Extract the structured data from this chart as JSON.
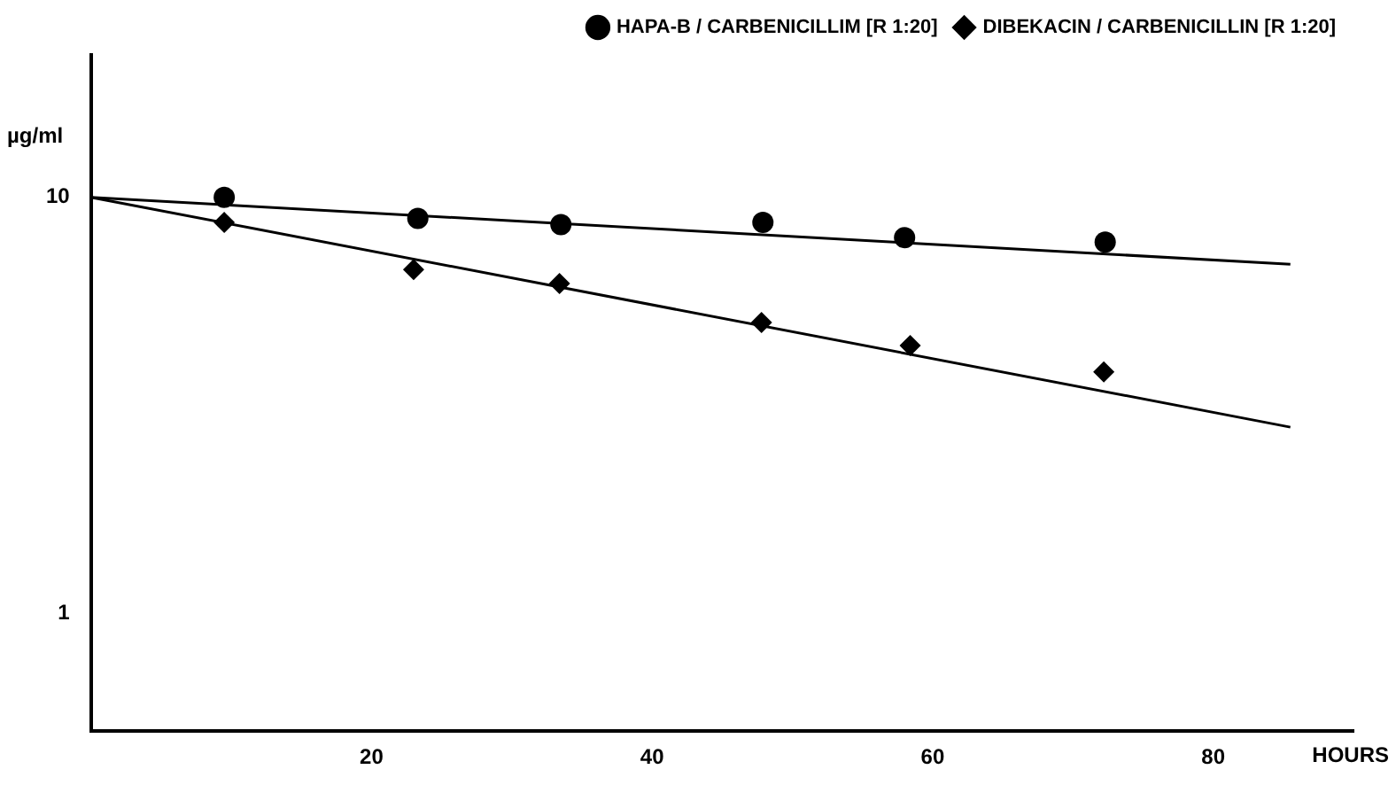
{
  "chart_data": {
    "type": "scatter",
    "xlabel": "HOURS",
    "ylabel": "µg/ml",
    "log": "y",
    "xlim": [
      0,
      90
    ],
    "xticks": [
      20,
      40,
      60,
      80
    ],
    "ylim": [
      0.52,
      22
    ],
    "yticks": [
      1,
      10
    ],
    "grid": false,
    "legend": "top right",
    "series": [
      {
        "name": "HAPA-B / CARBENICILLIM [R 1:20]",
        "color": "#000000",
        "marker": "circle",
        "x": [
          9.5,
          23.3,
          33.5,
          47.9,
          58,
          72.3
        ],
        "values": [
          10,
          8.9,
          8.6,
          8.7,
          8.0,
          7.8
        ]
      },
      {
        "name": "DIBEKACIN / CARBENICILLIN [R 1:20]",
        "color": "#000000",
        "marker": "diamond",
        "x": [
          9.5,
          23,
          33.4,
          47.8,
          58.4,
          72.2
        ],
        "values": [
          8.7,
          6.7,
          6.2,
          5.0,
          4.4,
          3.8
        ]
      },
      {
        "type": "line",
        "color": "#000000",
        "marker": "none",
        "line_style": "solid",
        "x": [
          0,
          85.5
        ],
        "values": [
          10,
          6.9
        ]
      },
      {
        "type": "line",
        "color": "#000000",
        "marker": "none",
        "line_style": "solid",
        "x": [
          0,
          85.5
        ],
        "values": [
          10,
          2.8
        ]
      }
    ]
  }
}
